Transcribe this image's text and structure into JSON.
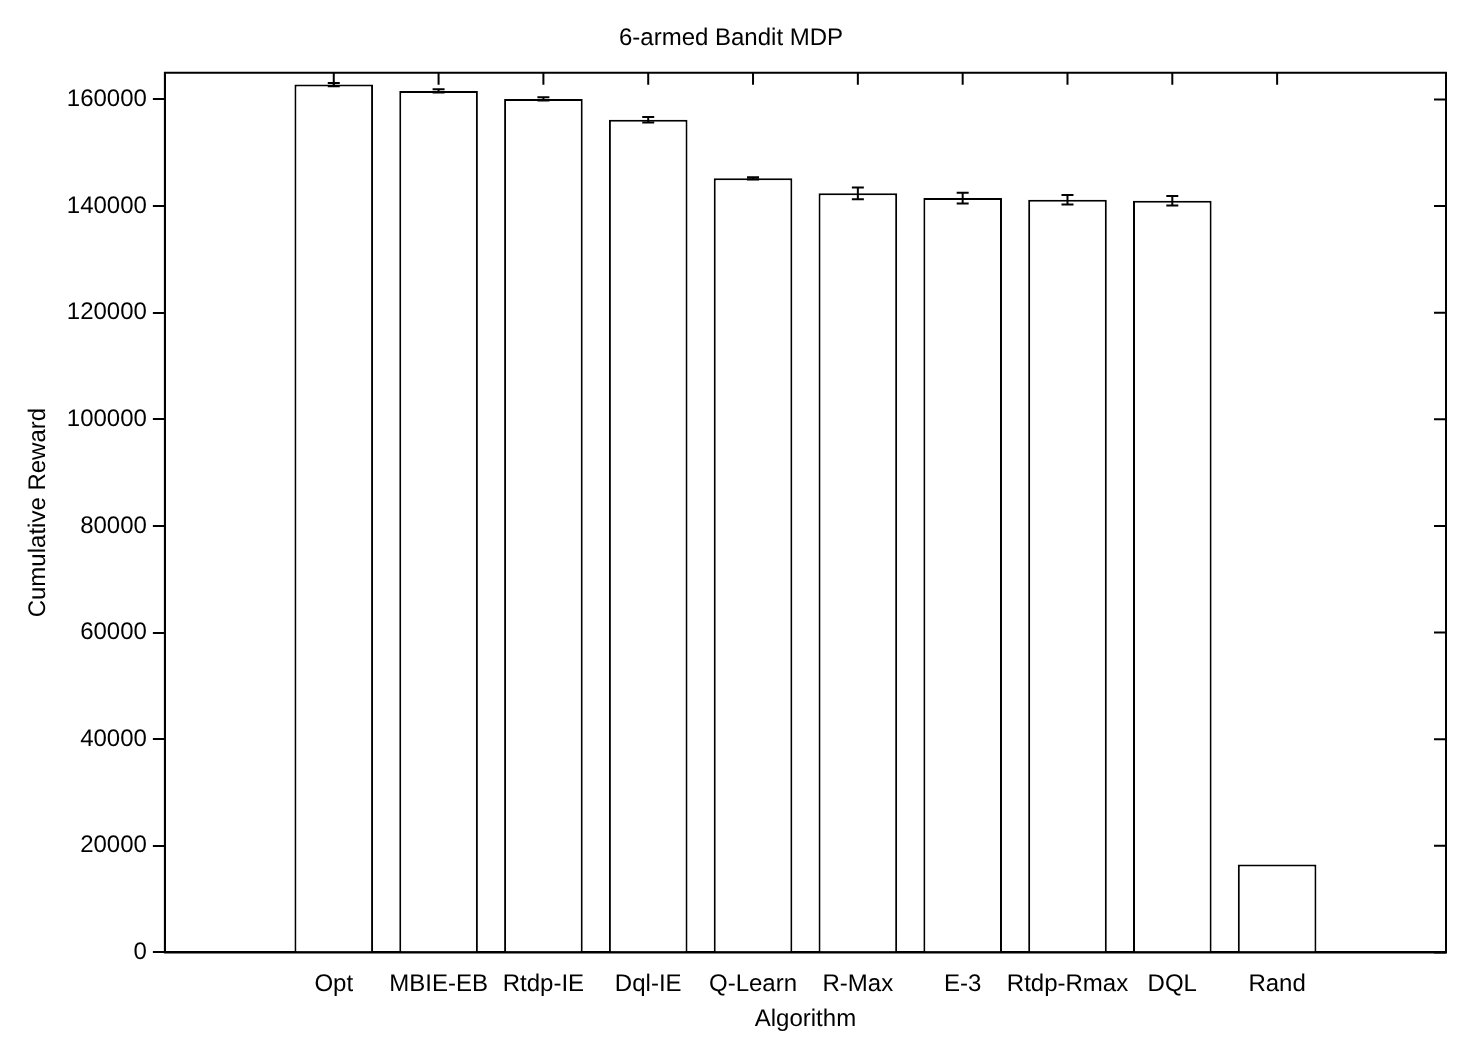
{
  "chart_data": {
    "type": "bar",
    "title": "6-armed Bandit MDP",
    "xlabel": "Algorithm",
    "ylabel": "Cumulative Reward",
    "categories": [
      "Opt",
      "MBIE-EB",
      "Rtdp-IE",
      "Dql-IE",
      "Q-Learn",
      "R-Max",
      "E-3",
      "Rtdp-Rmax",
      "DQL",
      "Rand"
    ],
    "values": [
      162800,
      161600,
      160100,
      156200,
      145200,
      142400,
      141500,
      141200,
      141000,
      16500
    ],
    "errors": [
      300,
      300,
      300,
      500,
      200,
      1100,
      1000,
      900,
      900,
      null
    ],
    "color": "#ffffff",
    "ylim": [
      0,
      165000
    ],
    "yticks": [
      0,
      20000,
      40000,
      60000,
      80000,
      100000,
      120000,
      140000,
      160000
    ],
    "grid": false,
    "legend": false
  }
}
